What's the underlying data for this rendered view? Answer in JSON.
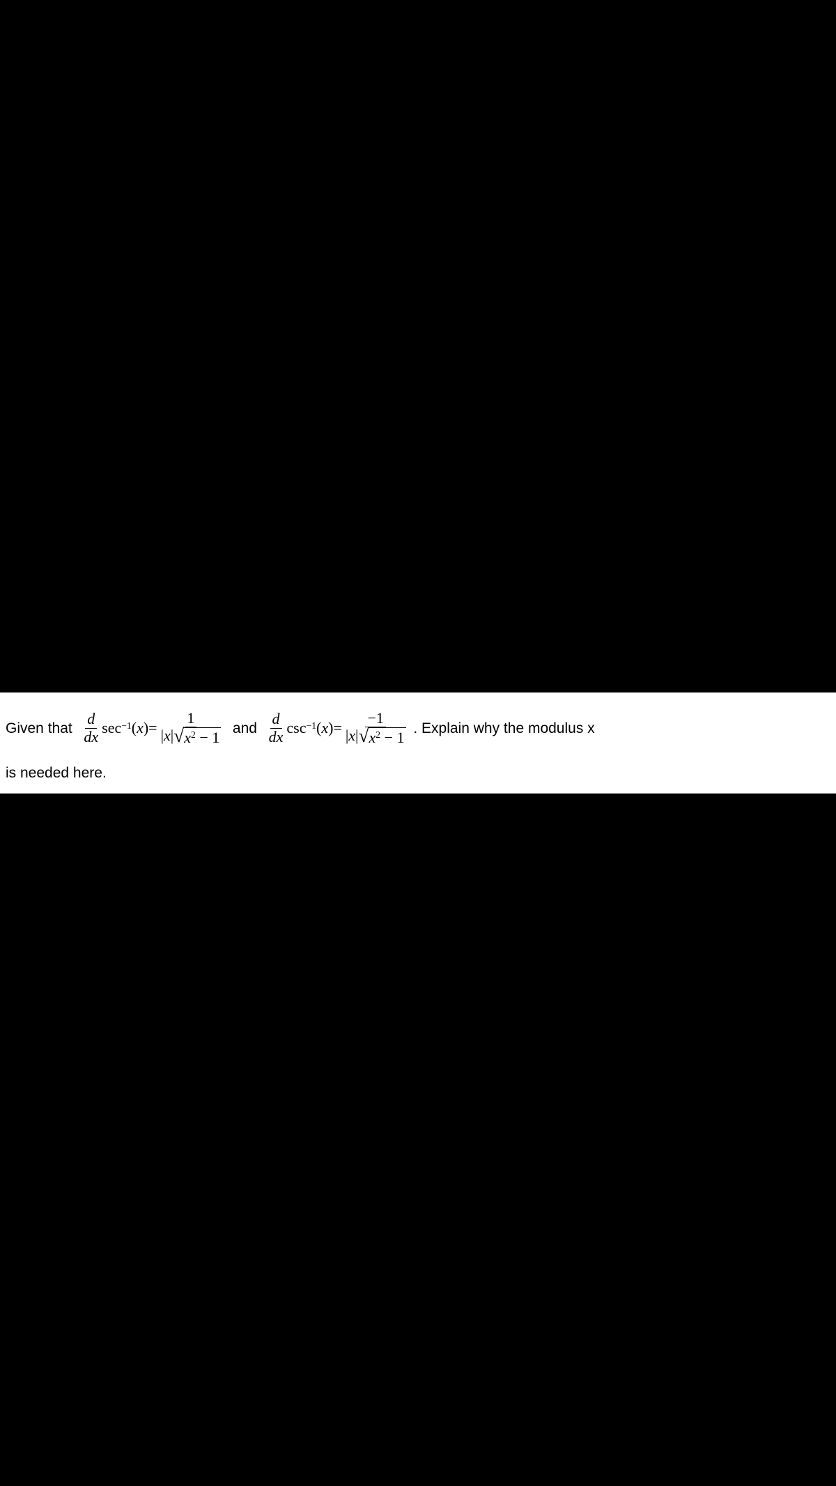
{
  "background_color": "#000000",
  "strip_background": "#ffffff",
  "text_color": "#000000",
  "font_plain": "Arial, Helvetica, sans-serif",
  "font_math": "Times New Roman, serif",
  "line1": {
    "t_given": "Given that  ",
    "t_and": "  and  ",
    "t_explain": " . Explain why the modulus x",
    "frac_d_dx": {
      "num": "d",
      "den": "dx"
    },
    "sec_expr": "sec",
    "csc_expr": "csc",
    "supneg1": "−1",
    "of_x": "(x)",
    "eq": " = ",
    "rhs1_num": "1",
    "rhs2_num": "−1",
    "abs_x": "|x|",
    "radicand": "x² − 1",
    "sup2": "2",
    "minus1": " − 1"
  },
  "line2": "is needed here."
}
